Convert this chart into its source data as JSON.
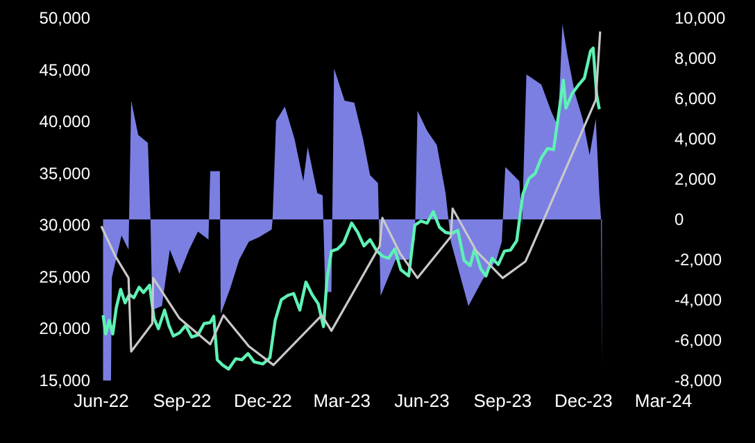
{
  "chart_data": {
    "type": "line",
    "xlim": [
      "2022-06-30",
      "2024-03-31"
    ],
    "xticks": [
      {
        "value": "2022-06-30",
        "label": "Jun-22"
      },
      {
        "value": "2022-09-30",
        "label": "Sep-22"
      },
      {
        "value": "2022-12-31",
        "label": "Dec-22"
      },
      {
        "value": "2023-03-31",
        "label": "Mar-23"
      },
      {
        "value": "2023-06-30",
        "label": "Jun-23"
      },
      {
        "value": "2023-09-30",
        "label": "Sep-23"
      },
      {
        "value": "2023-12-31",
        "label": "Dec-23"
      },
      {
        "value": "2024-03-31",
        "label": "Mar-24"
      }
    ],
    "ylim": [
      15000,
      50000
    ],
    "yticks": [
      {
        "value": 15000,
        "label": "15,000"
      },
      {
        "value": 20000,
        "label": "20,000"
      },
      {
        "value": 25000,
        "label": "25,000"
      },
      {
        "value": 30000,
        "label": "30,000"
      },
      {
        "value": 35000,
        "label": "35,000"
      },
      {
        "value": 40000,
        "label": "40,000"
      },
      {
        "value": 45000,
        "label": "45,000"
      },
      {
        "value": 50000,
        "label": "50,000"
      }
    ],
    "y2lim": [
      -8000,
      10000
    ],
    "y2ticks": [
      {
        "value": -8000,
        "label": "-8,000"
      },
      {
        "value": -6000,
        "label": "-6,000"
      },
      {
        "value": -4000,
        "label": "-4,000"
      },
      {
        "value": -2000,
        "label": "-2,000"
      },
      0,
      {
        "value": 2000,
        "label": "2,000"
      },
      {
        "value": 4000,
        "label": "4,000"
      },
      {
        "value": 6000,
        "label": "6,000"
      },
      {
        "value": 8000,
        "label": "8,000"
      },
      {
        "value": 10000,
        "label": "10,000"
      }
    ],
    "grid": false,
    "marker": "none",
    "series": [
      {
        "type": "area",
        "axis": "y2",
        "color": "#7b7fe2",
        "x": [
          "2022-07-02",
          "2022-07-11",
          "2022-07-12",
          "2022-07-23",
          "2022-07-31",
          "2022-08-03",
          "2022-08-11",
          "2022-08-22",
          "2022-08-25",
          "2022-08-27",
          "2022-09-07",
          "2022-09-16",
          "2022-09-27",
          "2022-10-08",
          "2022-10-18",
          "2022-10-30",
          "2022-11-01",
          "2022-11-12",
          "2022-11-13",
          "2022-11-24",
          "2022-12-04",
          "2022-12-15",
          "2022-12-26",
          "2023-01-10",
          "2023-01-11",
          "2023-01-15",
          "2023-01-25",
          "2023-02-05",
          "2023-02-15",
          "2023-02-20",
          "2023-03-03",
          "2023-03-09",
          "2023-03-12",
          "2023-03-19",
          "2023-03-22",
          "2023-04-03",
          "2023-04-14",
          "2023-04-24",
          "2023-05-02",
          "2023-05-11",
          "2023-05-14",
          "2023-05-31",
          "2023-06-15",
          "2023-06-22",
          "2023-06-25",
          "2023-07-06",
          "2023-07-17",
          "2023-07-27",
          "2023-08-02",
          "2023-08-22",
          "2023-09-07",
          "2023-09-23",
          "2023-09-29",
          "2023-10-03",
          "2023-10-19",
          "2023-10-22",
          "2023-10-27",
          "2023-11-13",
          "2023-11-24",
          "2023-12-02",
          "2023-12-07",
          "2023-12-13",
          "2023-12-21",
          "2023-12-30",
          "2024-01-07",
          "2024-01-14",
          "2024-01-18",
          "2024-01-20",
          "2024-01-21"
        ],
        "values": [
          -8000,
          -8000,
          -2900,
          -800,
          -1500,
          5900,
          4200,
          3800,
          0,
          -4500,
          -4300,
          -1500,
          -2700,
          -1500,
          -600,
          -1000,
          2400,
          2400,
          -4700,
          -3400,
          -2000,
          -1100,
          -900,
          -500,
          0,
          4900,
          5600,
          4000,
          1900,
          3600,
          1300,
          1200,
          -3600,
          -3600,
          7500,
          5900,
          5800,
          4000,
          2200,
          1800,
          -3800,
          -2000,
          -2000,
          -1000,
          5400,
          4400,
          3700,
          1300,
          -1100,
          -4300,
          -3000,
          -2000,
          -1100,
          2600,
          1900,
          -300,
          7200,
          6700,
          5400,
          4600,
          9700,
          8100,
          6300,
          5000,
          3200,
          5000,
          1300,
          0,
          -7200
        ]
      },
      {
        "color": "#5ef2b4",
        "x": [
          "2022-07-02",
          "2022-07-05",
          "2022-07-09",
          "2022-07-13",
          "2022-07-17",
          "2022-07-22",
          "2022-07-27",
          "2022-08-01",
          "2022-08-06",
          "2022-08-12",
          "2022-08-17",
          "2022-08-24",
          "2022-08-29",
          "2022-09-03",
          "2022-09-10",
          "2022-09-15",
          "2022-09-20",
          "2022-09-27",
          "2022-10-04",
          "2022-10-11",
          "2022-10-18",
          "2022-10-25",
          "2022-11-01",
          "2022-11-05",
          "2022-11-09",
          "2022-11-15",
          "2022-11-22",
          "2022-11-30",
          "2022-12-07",
          "2022-12-14",
          "2022-12-21",
          "2022-12-31",
          "2023-01-08",
          "2023-01-14",
          "2023-01-21",
          "2023-01-28",
          "2023-02-04",
          "2023-02-11",
          "2023-02-18",
          "2023-02-25",
          "2023-03-04",
          "2023-03-10",
          "2023-03-14",
          "2023-03-19",
          "2023-03-26",
          "2023-04-02",
          "2023-04-11",
          "2023-04-18",
          "2023-04-25",
          "2023-05-02",
          "2023-05-09",
          "2023-05-16",
          "2023-05-23",
          "2023-05-30",
          "2023-06-06",
          "2023-06-15",
          "2023-06-22",
          "2023-06-29",
          "2023-07-06",
          "2023-07-13",
          "2023-07-20",
          "2023-07-27",
          "2023-08-03",
          "2023-08-10",
          "2023-08-17",
          "2023-08-24",
          "2023-08-29",
          "2023-09-05",
          "2023-09-11",
          "2023-09-18",
          "2023-09-25",
          "2023-10-02",
          "2023-10-09",
          "2023-10-16",
          "2023-10-23",
          "2023-10-30",
          "2023-11-06",
          "2023-11-13",
          "2023-11-20",
          "2023-11-27",
          "2023-12-04",
          "2023-12-08",
          "2023-12-11",
          "2023-12-18",
          "2023-12-25",
          "2024-01-01",
          "2024-01-08",
          "2024-01-11",
          "2024-01-15",
          "2024-01-18"
        ],
        "values": [
          21300,
          19500,
          20800,
          19500,
          22000,
          23800,
          22500,
          23300,
          23000,
          24000,
          23500,
          24200,
          21000,
          20000,
          21800,
          20300,
          19300,
          19600,
          20300,
          19200,
          19400,
          20500,
          20600,
          21200,
          17000,
          16500,
          16100,
          17100,
          17000,
          17600,
          16800,
          16600,
          17200,
          20800,
          22800,
          23200,
          23400,
          21800,
          24500,
          23300,
          22400,
          20200,
          24800,
          27500,
          27700,
          28300,
          30200,
          29300,
          28000,
          28600,
          27600,
          27000,
          26800,
          27700,
          25700,
          25100,
          30000,
          30400,
          30200,
          31300,
          29800,
          29300,
          29200,
          29500,
          26600,
          26100,
          27700,
          25800,
          25100,
          26800,
          26200,
          27500,
          27600,
          28500,
          33000,
          34500,
          35000,
          36500,
          37400,
          37300,
          41500,
          44000,
          41300,
          42700,
          43500,
          44200,
          46800,
          47100,
          42600,
          41200
        ]
      },
      {
        "color": "#c9c9c9",
        "x": [
          "2022-06-30",
          "2022-07-16",
          "2022-07-31",
          "2022-08-03",
          "2022-08-27",
          "2022-08-28",
          "2022-09-27",
          "2022-11-01",
          "2022-11-16",
          "2022-12-15",
          "2023-01-12",
          "2023-03-08",
          "2023-03-19",
          "2023-05-13",
          "2023-05-16",
          "2023-06-05",
          "2023-06-25",
          "2023-08-02",
          "2023-08-04",
          "2023-08-31",
          "2023-09-30",
          "2023-10-26",
          "2024-01-14",
          "2024-01-19"
        ],
        "values": [
          29900,
          27000,
          24900,
          17800,
          20500,
          24900,
          21000,
          18500,
          21300,
          18300,
          16500,
          21300,
          19800,
          28000,
          30700,
          27300,
          24900,
          28900,
          31600,
          27500,
          24900,
          26500,
          42100,
          48700
        ]
      }
    ]
  }
}
